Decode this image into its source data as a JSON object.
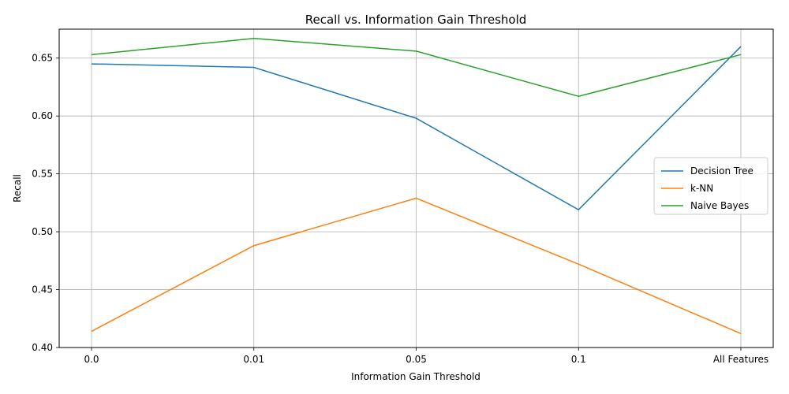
{
  "chart_data": {
    "type": "line",
    "title": "Recall vs. Information Gain Threshold",
    "xlabel": "Information Gain Threshold",
    "ylabel": "Recall",
    "categories": [
      "0.0",
      "0.01",
      "0.05",
      "0.1",
      "All Features"
    ],
    "ylim": [
      0.4,
      0.675
    ],
    "yticks": [
      "0.40",
      "0.45",
      "0.50",
      "0.55",
      "0.60",
      "0.65"
    ],
    "grid": true,
    "legend_position": "center-right",
    "series": [
      {
        "name": "Decision Tree",
        "color": "#1f77b4",
        "values": [
          0.645,
          0.642,
          0.598,
          0.519,
          0.66
        ]
      },
      {
        "name": "k-NN",
        "color": "#ff7f0e",
        "values": [
          0.414,
          0.488,
          0.529,
          0.472,
          0.412
        ]
      },
      {
        "name": "Naive Bayes",
        "color": "#2ca02c",
        "values": [
          0.653,
          0.667,
          0.656,
          0.617,
          0.653
        ]
      }
    ]
  }
}
